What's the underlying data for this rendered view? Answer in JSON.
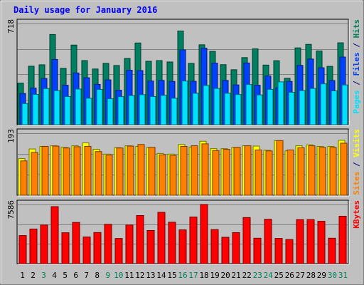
{
  "chart_data": {
    "type": "bar",
    "title": "Daily usage for January 2016",
    "categories": [
      "1",
      "2",
      "3",
      "4",
      "5",
      "6",
      "7",
      "8",
      "9",
      "10",
      "11",
      "12",
      "13",
      "14",
      "15",
      "16",
      "17",
      "18",
      "19",
      "20",
      "21",
      "22",
      "23",
      "24",
      "25",
      "26",
      "27",
      "28",
      "29",
      "30",
      "31"
    ],
    "weekend_days": [
      "3",
      "9",
      "10",
      "16",
      "17",
      "23",
      "24",
      "30",
      "31"
    ],
    "panels": [
      {
        "name": "hits-files-pages",
        "ymax": 718,
        "ymax_label": "718",
        "legend": [
          {
            "text": "Pages",
            "color": "#00E0FF"
          },
          {
            "text": " / ",
            "color": "#000080"
          },
          {
            "text": "Files",
            "color": "#0040FF"
          },
          {
            "text": " / ",
            "color": "#000080"
          },
          {
            "text": "Hits",
            "color": "#00805C"
          }
        ],
        "series": [
          {
            "name": "Hits",
            "color": "#008060",
            "values": [
              295,
              415,
              425,
              640,
              400,
              565,
              455,
              395,
              435,
              420,
              470,
              580,
              450,
              455,
              445,
              665,
              435,
              567,
              520,
              426,
              390,
              476,
              538,
              423,
              454,
              329,
              545,
              570,
              523,
              414,
              581
            ]
          },
          {
            "name": "Files",
            "color": "#0040FF",
            "values": [
              222,
              260,
              327,
              463,
              280,
              367,
              333,
              286,
              318,
              245,
              387,
              384,
              310,
              314,
              307,
              531,
              308,
              543,
              437,
              314,
              282,
              438,
              280,
              346,
              262,
              307,
              421,
              466,
              404,
              313,
              480
            ]
          },
          {
            "name": "Pages",
            "color": "#00E0FF",
            "values": [
              150,
              215,
              256,
              242,
              200,
              253,
              188,
              250,
              184,
              199,
              207,
              213,
              200,
              208,
              188,
              310,
              223,
              278,
              257,
              223,
              214,
              285,
              211,
              251,
              304,
              230,
              242,
              257,
              290,
              240,
              282
            ]
          }
        ]
      },
      {
        "name": "visits-sites",
        "ymax": 193,
        "ymax_label": "193",
        "legend": [
          {
            "text": "Sites",
            "color": "#FF8000"
          },
          {
            "text": " / ",
            "color": "#000080"
          },
          {
            "text": "Visits",
            "color": "#FFFF00"
          }
        ],
        "series": [
          {
            "name": "Visits",
            "color": "#FFFF00",
            "values": [
              114,
              144,
              152,
              154,
              149,
              154,
              163,
              143,
              128,
              148,
              154,
              152,
              148,
              130,
              128,
              158,
              150,
              168,
              145,
              145,
              149,
              154,
              153,
              140,
              170,
              138,
              154,
              157,
              152,
              152,
              171
            ]
          },
          {
            "name": "Sites",
            "color": "#FF8000",
            "values": [
              107,
              133,
              152,
              153,
              147,
              151,
              152,
              136,
              125,
              147,
              153,
              158,
              149,
              126,
              124,
              152,
              154,
              160,
              139,
              143,
              149,
              154,
              141,
              138,
              170,
              141,
              148,
              154,
              149,
              149,
              162
            ]
          }
        ]
      },
      {
        "name": "kbytes",
        "ymax": 7586,
        "ymax_label": "7586",
        "legend": [
          {
            "text": "KBytes",
            "color": "#FF0000"
          }
        ],
        "series": [
          {
            "name": "KBytes",
            "color": "#FF0000",
            "values": [
              3600,
              4440,
              4960,
              7310,
              3960,
              5280,
              3420,
              3990,
              5040,
              3230,
              4960,
              6170,
              4250,
              6580,
              5310,
              4330,
              5980,
              7586,
              4370,
              3380,
              3980,
              5910,
              3260,
              5690,
              3240,
              3090,
              5650,
              5650,
              5430,
              3260,
              6080
            ]
          }
        ]
      }
    ],
    "colors": {
      "background": "#C0C0C0",
      "panel": "#C0C0C0",
      "grid": "#808080",
      "title": "#0000FF",
      "weekday_label": "#000000",
      "weekend_label": "#00805C"
    }
  }
}
